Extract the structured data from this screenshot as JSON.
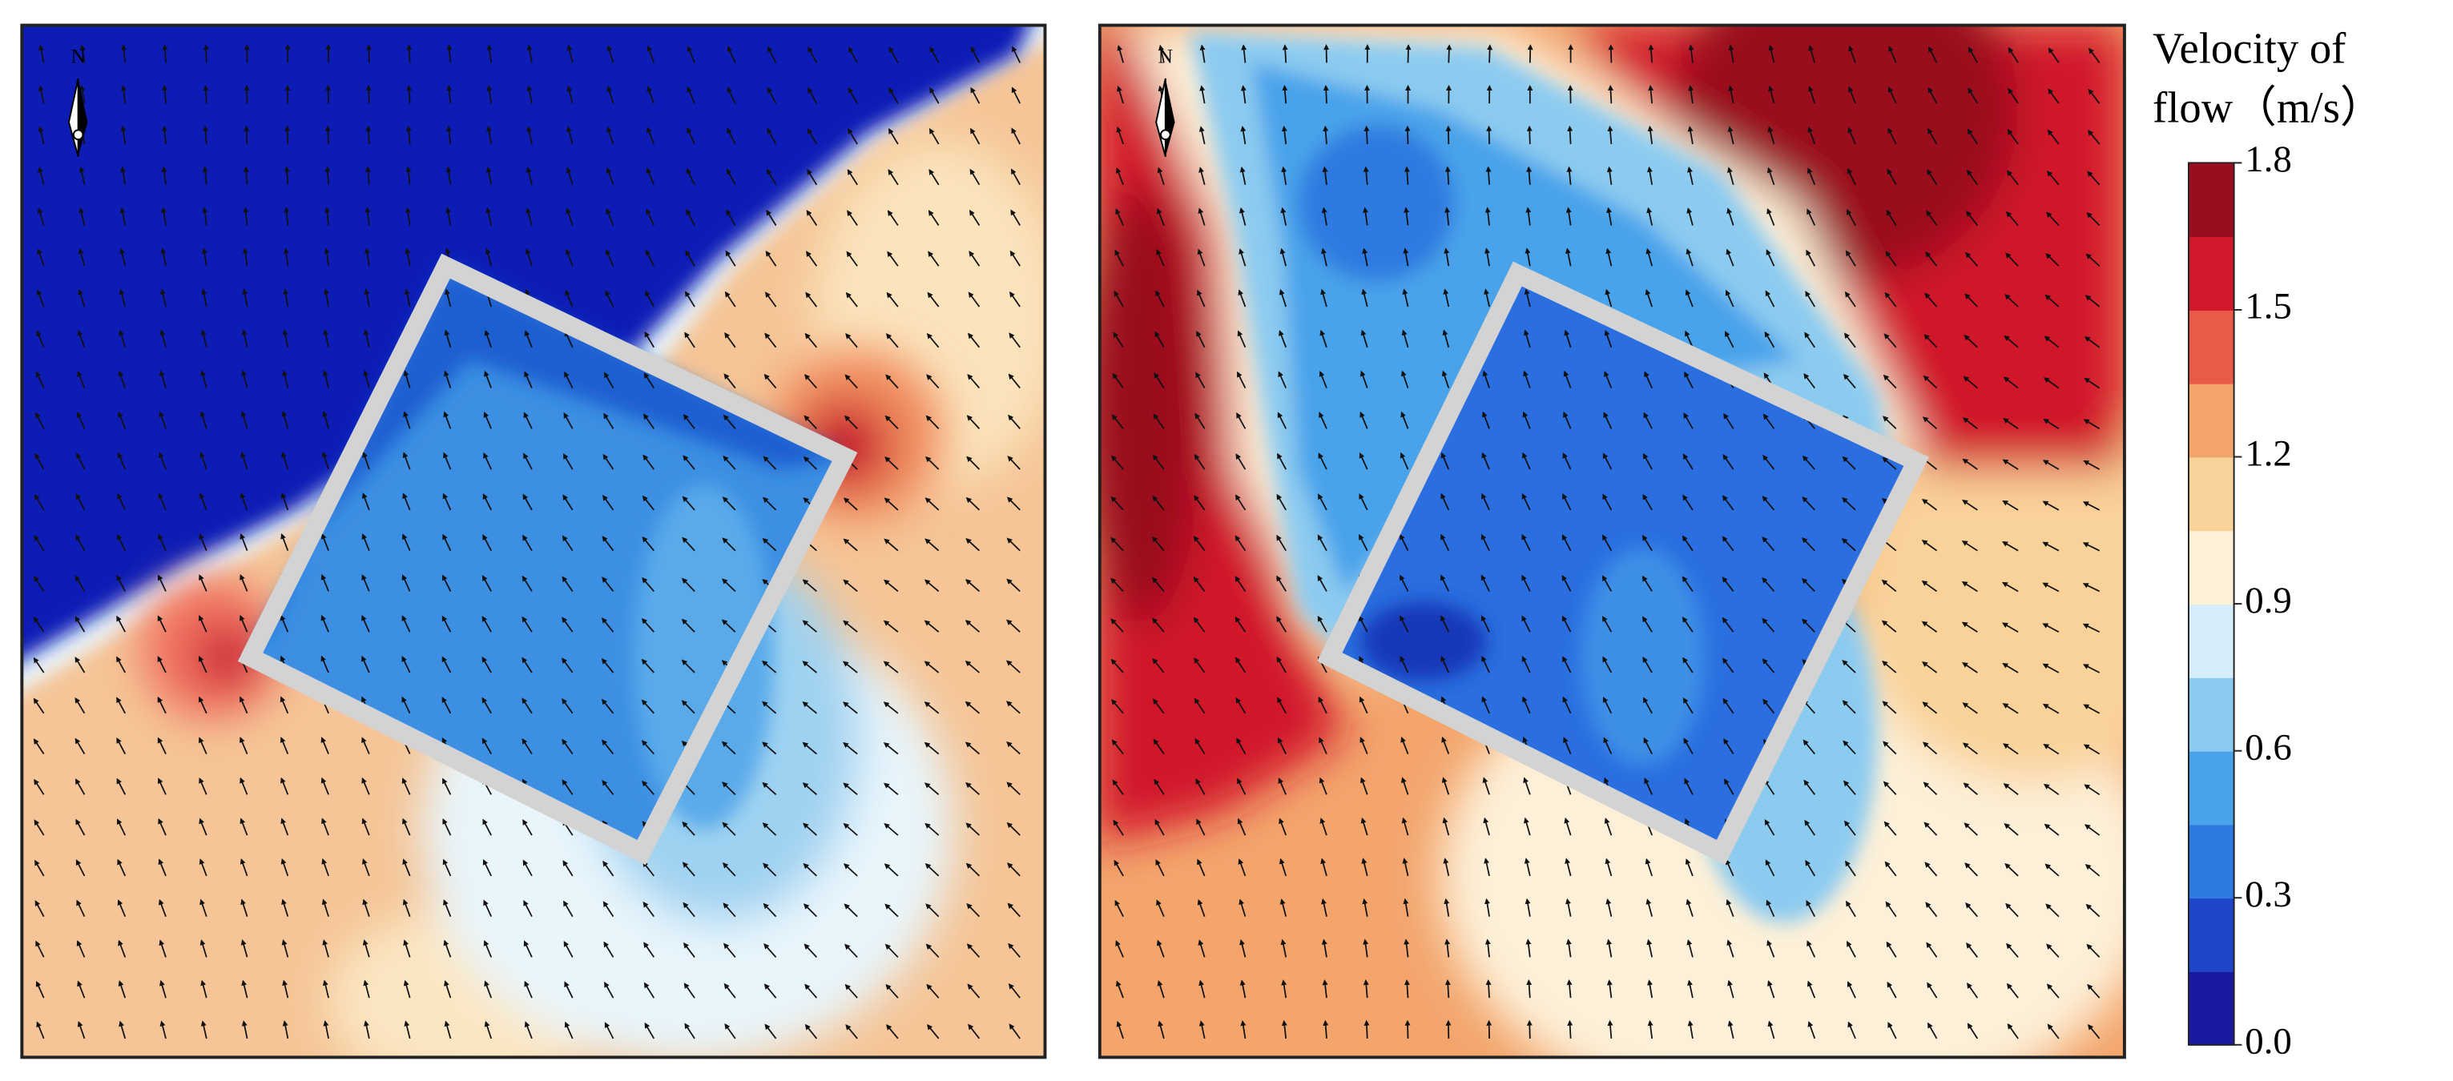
{
  "chart_data": {
    "type": "contour",
    "panels": [
      {
        "north_label": "N"
      },
      {
        "north_label": "N"
      }
    ],
    "colorbar": {
      "title": [
        "Velocity of",
        "flow（m/s）"
      ],
      "ylim": [
        0,
        1.8
      ],
      "yticks": [
        {
          "value": 0,
          "label": "0.0"
        },
        0.3,
        0.6,
        0.9,
        1.2,
        1.5,
        1.8
      ],
      "colors": [
        "#1a1aa0",
        "#1f46c8",
        "#2f7ae0",
        "#4aa3ea",
        "#8ccbf0",
        "#d5eef9",
        "#fdf0d8",
        "#f9d29a",
        "#f3a56c",
        "#ea5a48",
        "#d2182c",
        "#9a0c1f"
      ]
    }
  }
}
